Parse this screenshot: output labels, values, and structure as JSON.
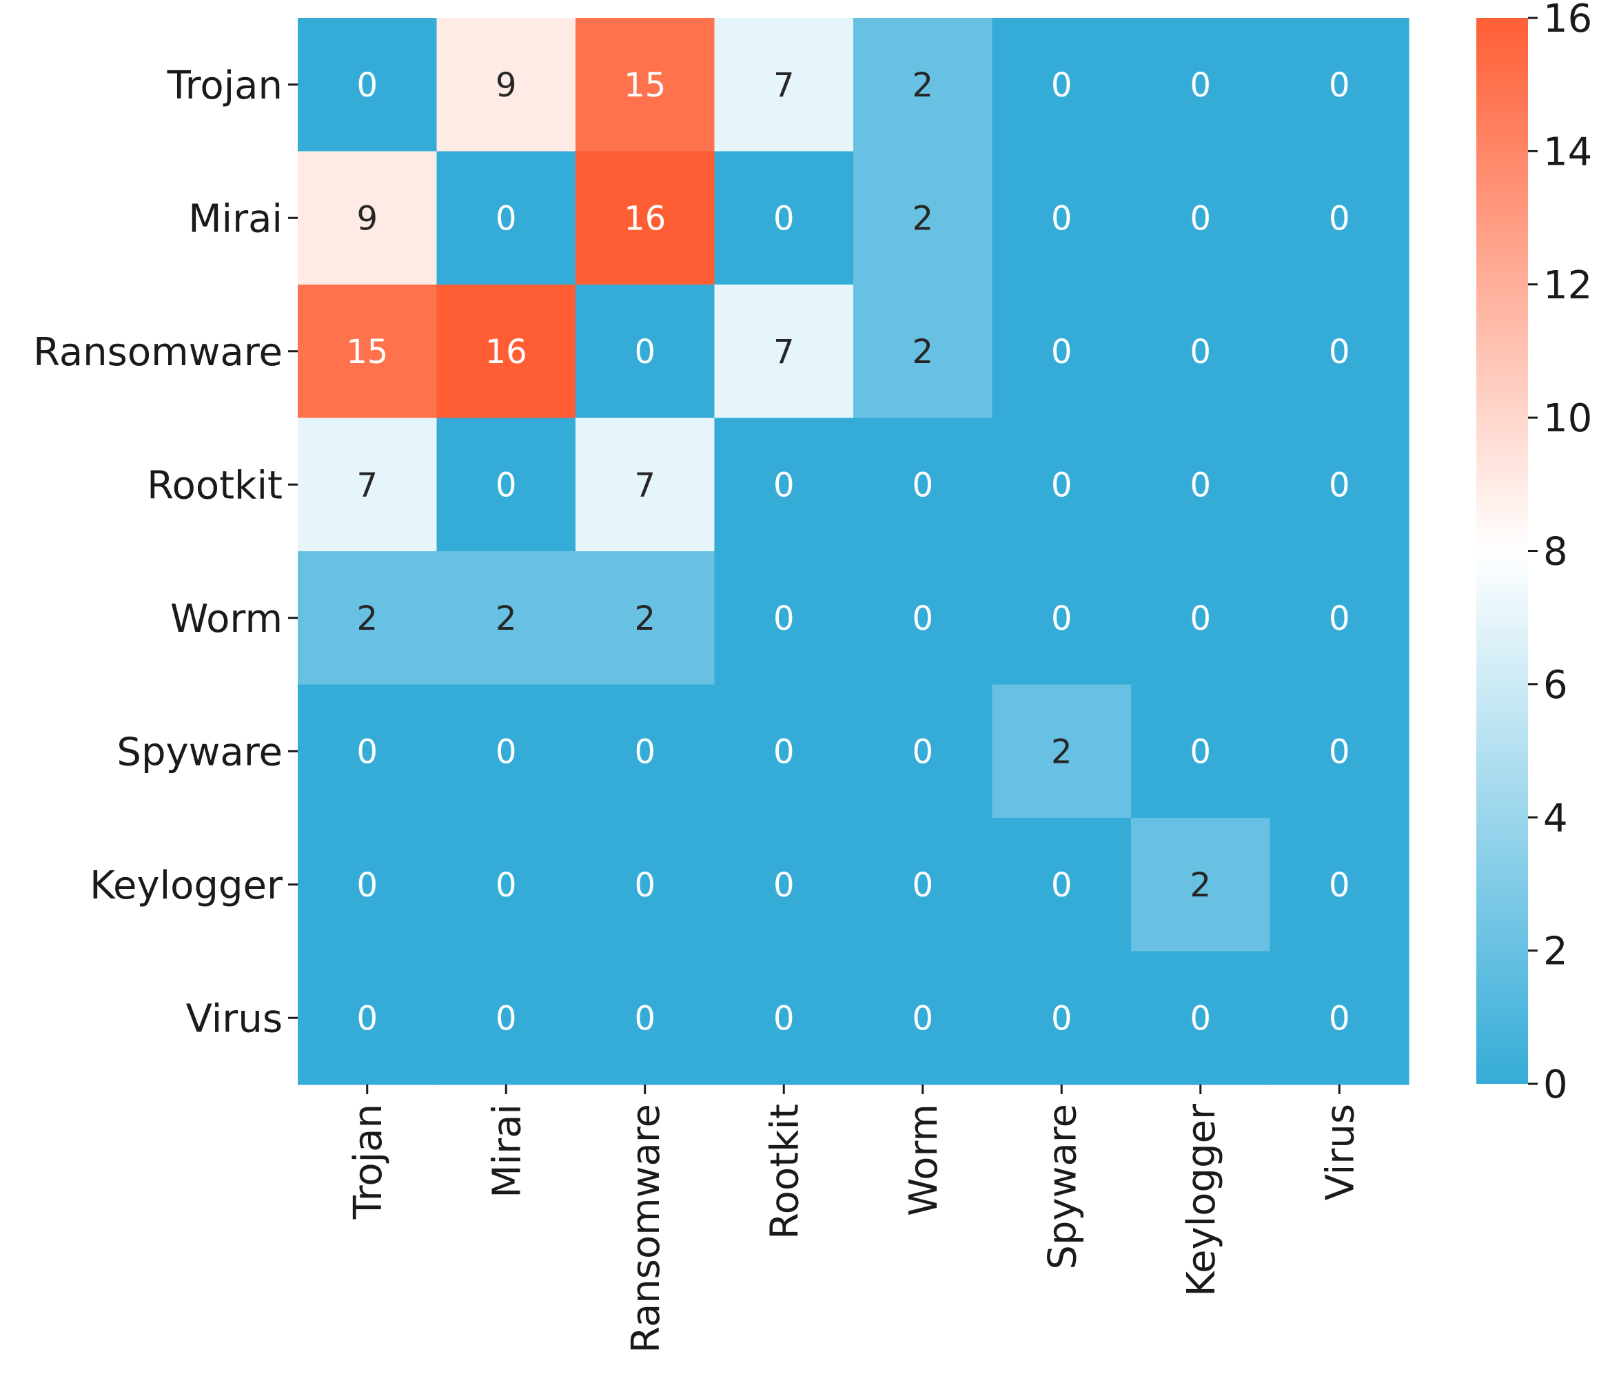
{
  "chart_data": {
    "type": "heatmap",
    "title": "",
    "xlabel": "",
    "ylabel": "",
    "rows": [
      "Trojan",
      "Mirai",
      "Ransomware",
      "Rootkit",
      "Worm",
      "Spyware",
      "Keylogger",
      "Virus"
    ],
    "columns": [
      "Trojan",
      "Mirai",
      "Ransomware",
      "Rootkit",
      "Worm",
      "Spyware",
      "Keylogger",
      "Virus"
    ],
    "values": [
      [
        0,
        9,
        15,
        7,
        2,
        0,
        0,
        0
      ],
      [
        9,
        0,
        16,
        0,
        2,
        0,
        0,
        0
      ],
      [
        15,
        16,
        0,
        7,
        2,
        0,
        0,
        0
      ],
      [
        7,
        0,
        7,
        0,
        0,
        0,
        0,
        0
      ],
      [
        2,
        2,
        2,
        0,
        0,
        0,
        0,
        0
      ],
      [
        0,
        0,
        0,
        0,
        0,
        2,
        0,
        0
      ],
      [
        0,
        0,
        0,
        0,
        0,
        0,
        2,
        0
      ],
      [
        0,
        0,
        0,
        0,
        0,
        0,
        0,
        0
      ]
    ],
    "colorbar": {
      "min": 0,
      "max": 16,
      "ticks": [
        0,
        2,
        4,
        6,
        8,
        10,
        12,
        14,
        16
      ],
      "low_color": "#35acd8",
      "mid_color": "#ffffff",
      "high_color": "#ff5e35"
    }
  }
}
